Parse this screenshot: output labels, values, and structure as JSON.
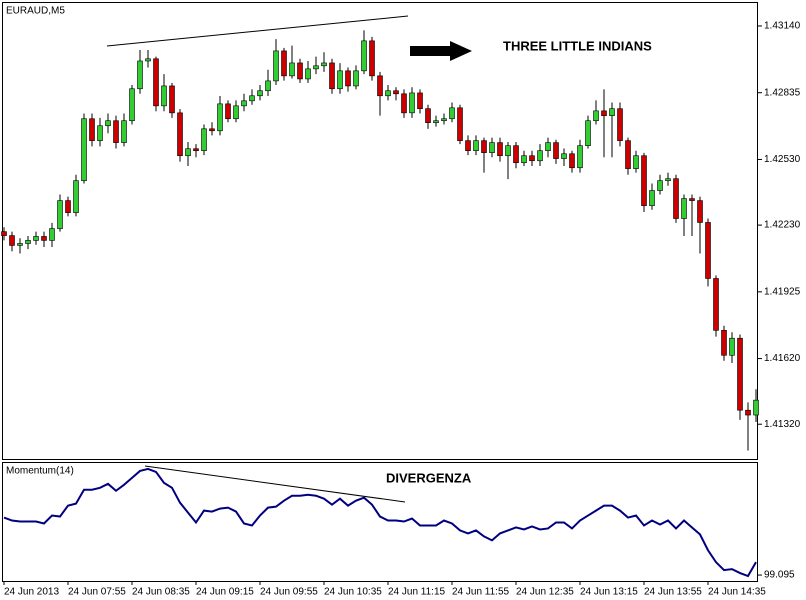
{
  "chart_data": [
    {
      "type": "candlestick",
      "title": "EURAUD,M5",
      "annotation": "THREE LITTLE INDIANS",
      "categories": [
        "24 Jun 2013",
        null,
        null,
        null,
        null,
        null,
        null,
        null,
        "24 Jun 07:55",
        null,
        null,
        null,
        null,
        null,
        null,
        null,
        "24 Jun 08:35",
        null,
        null,
        null,
        null,
        null,
        null,
        null,
        "24 Jun 09:15",
        null,
        null,
        null,
        null,
        null,
        null,
        null,
        "24 Jun 09:55",
        null,
        null,
        null,
        null,
        null,
        null,
        null,
        "24 Jun 10:35",
        null,
        null,
        null,
        null,
        null,
        null,
        null,
        "24 Jun 11:15",
        null,
        null,
        null,
        null,
        null,
        null,
        null,
        "24 Jun 11:55",
        null,
        null,
        null,
        null,
        null,
        null,
        null,
        "24 Jun 12:35",
        null,
        null,
        null,
        null,
        null,
        null,
        null,
        "24 Jun 13:15",
        null,
        null,
        null,
        null,
        null,
        null,
        null,
        "24 Jun 13:55",
        null,
        null,
        null,
        null,
        null,
        null,
        null,
        "24 Jun 14:35",
        null,
        null,
        null,
        null,
        null,
        null
      ],
      "open": [
        1.422,
        1.42182,
        1.42137,
        1.42146,
        1.4216,
        1.42178,
        1.4216,
        1.42214,
        1.42342,
        1.42287,
        1.42433,
        1.42716,
        1.42616,
        1.42684,
        1.42707,
        1.42607,
        1.42707,
        1.42853,
        1.4298,
        1.4299,
        1.42775,
        1.42866,
        1.42743,
        1.42547,
        1.42579,
        1.4257,
        1.4267,
        1.42661,
        1.42784,
        1.42716,
        1.42775,
        1.42798,
        1.42821,
        1.42844,
        1.42889,
        1.43026,
        1.42912,
        1.42971,
        1.42898,
        1.42944,
        1.42958,
        1.42971,
        1.42853,
        1.42935,
        1.42866,
        1.42935,
        1.43072,
        1.42912,
        1.42821,
        1.42844,
        1.4283,
        1.42743,
        1.42834,
        1.42762,
        1.42698,
        1.42707,
        1.42716,
        1.42766,
        1.42616,
        1.4257,
        1.42616,
        1.42561,
        1.42607,
        1.42547,
        1.42593,
        1.42515,
        1.42547,
        1.42524,
        1.4257,
        1.42607,
        1.42534,
        1.42556,
        1.42492,
        1.42593,
        1.42707,
        1.42752,
        1.4273,
        1.42762,
        1.42616,
        1.42488,
        1.42547,
        1.42319,
        1.42388,
        1.42433,
        1.42442,
        1.4226,
        1.42351,
        1.42342,
        1.42242,
        1.41986,
        1.41749,
        1.41635,
        1.41713,
        1.41384,
        1.41362
      ],
      "high": [
        1.4222,
        1.422,
        1.4217,
        1.4218,
        1.422,
        1.422,
        1.4224,
        1.4237,
        1.4236,
        1.4246,
        1.4274,
        1.4274,
        1.4272,
        1.4274,
        1.4273,
        1.4274,
        1.4287,
        1.4303,
        1.4303,
        1.43,
        1.4292,
        1.4288,
        1.4276,
        1.4261,
        1.426,
        1.4269,
        1.427,
        1.4282,
        1.428,
        1.428,
        1.4283,
        1.4285,
        1.4287,
        1.4294,
        1.4308,
        1.4304,
        1.4305,
        1.4299,
        1.4298,
        1.43,
        1.4302,
        1.4299,
        1.4297,
        1.4295,
        1.4296,
        1.4312,
        1.4309,
        1.4293,
        1.4287,
        1.4286,
        1.4285,
        1.4286,
        1.4285,
        1.4278,
        1.4273,
        1.4274,
        1.4279,
        1.4278,
        1.4264,
        1.4264,
        1.4263,
        1.4263,
        1.4263,
        1.4261,
        1.4261,
        1.4257,
        1.4257,
        1.426,
        1.4263,
        1.4262,
        1.4258,
        1.4257,
        1.4262,
        1.4273,
        1.428,
        1.4285,
        1.4279,
        1.4279,
        1.4263,
        1.4257,
        1.4256,
        1.4242,
        1.4246,
        1.4247,
        1.4246,
        1.4237,
        1.4237,
        1.4236,
        1.4226,
        1.42,
        1.4177,
        1.4174,
        1.4173,
        1.4142,
        1.4148
      ],
      "low": [
        1.4216,
        1.4211,
        1.421,
        1.4212,
        1.4214,
        1.4213,
        1.4213,
        1.422,
        1.4227,
        1.4227,
        1.4242,
        1.4259,
        1.4259,
        1.4265,
        1.4258,
        1.4259,
        1.4269,
        1.4283,
        1.4295,
        1.4275,
        1.4275,
        1.4272,
        1.4252,
        1.425,
        1.4254,
        1.4255,
        1.4264,
        1.4264,
        1.427,
        1.427,
        1.4275,
        1.4278,
        1.428,
        1.4282,
        1.4287,
        1.4289,
        1.429,
        1.4288,
        1.4288,
        1.4292,
        1.4293,
        1.4283,
        1.4283,
        1.4284,
        1.4285,
        1.4292,
        1.4289,
        1.4273,
        1.428,
        1.428,
        1.4272,
        1.4272,
        1.4274,
        1.4267,
        1.4268,
        1.4269,
        1.427,
        1.426,
        1.4255,
        1.4255,
        1.4247,
        1.4254,
        1.4252,
        1.4244,
        1.4249,
        1.425,
        1.425,
        1.425,
        1.4254,
        1.4251,
        1.425,
        1.4247,
        1.4247,
        1.4258,
        1.4269,
        1.4254,
        1.4254,
        1.4259,
        1.4246,
        1.4247,
        1.4229,
        1.423,
        1.4237,
        1.4241,
        1.4224,
        1.4218,
        1.4218,
        1.421,
        1.4195,
        1.4172,
        1.4161,
        1.416,
        1.4134,
        1.412,
        1.4133
      ],
      "close": [
        1.42182,
        1.42137,
        1.42146,
        1.4216,
        1.42178,
        1.4216,
        1.42214,
        1.42342,
        1.42287,
        1.42433,
        1.42716,
        1.42616,
        1.42684,
        1.42707,
        1.42607,
        1.42707,
        1.42853,
        1.4298,
        1.4299,
        1.42775,
        1.42866,
        1.42743,
        1.42547,
        1.42579,
        1.4257,
        1.4267,
        1.42661,
        1.42784,
        1.42716,
        1.42775,
        1.42798,
        1.42821,
        1.42844,
        1.42889,
        1.43026,
        1.42912,
        1.42971,
        1.42898,
        1.42944,
        1.42958,
        1.42971,
        1.42853,
        1.42935,
        1.42866,
        1.42935,
        1.43072,
        1.42912,
        1.42821,
        1.42844,
        1.4283,
        1.42743,
        1.42834,
        1.42762,
        1.42698,
        1.42707,
        1.42716,
        1.42766,
        1.42616,
        1.4257,
        1.42616,
        1.42561,
        1.42607,
        1.42547,
        1.42593,
        1.42515,
        1.42547,
        1.42524,
        1.4257,
        1.42607,
        1.42534,
        1.42556,
        1.42492,
        1.42593,
        1.42707,
        1.42752,
        1.4273,
        1.42762,
        1.42616,
        1.42488,
        1.42547,
        1.42319,
        1.42388,
        1.42433,
        1.42442,
        1.4226,
        1.42351,
        1.42342,
        1.42242,
        1.41986,
        1.41749,
        1.41635,
        1.41713,
        1.41384,
        1.41362,
        1.4143
      ],
      "up_color": "#32cd32",
      "down_color": "#cc0000",
      "ylim": [
        1.41161,
        1.43245
      ],
      "yticks": [
        {
          "value": 1.4314,
          "label": "1.43140"
        },
        {
          "value": 1.42835,
          "label": "1.42835"
        },
        {
          "value": 1.4253,
          "label": "1.42530"
        },
        {
          "value": 1.4223,
          "label": "1.42230"
        },
        {
          "value": 1.41925,
          "label": "1.41925"
        },
        {
          "value": 1.4162,
          "label": "1.41620"
        },
        {
          "value": 1.4132,
          "label": "1.41320"
        }
      ]
    },
    {
      "type": "line",
      "title": "Momentum(14)",
      "annotation": "DIVERGENZA",
      "color": "#000080",
      "values": [
        99.791,
        99.755,
        99.743,
        99.743,
        99.743,
        99.719,
        99.815,
        99.803,
        99.935,
        99.959,
        100.127,
        100.127,
        100.151,
        100.199,
        100.115,
        100.187,
        100.271,
        100.355,
        100.379,
        100.343,
        100.211,
        100.151,
        99.971,
        99.851,
        99.731,
        99.875,
        99.863,
        99.899,
        99.911,
        99.863,
        99.719,
        99.695,
        99.815,
        99.911,
        99.923,
        99.995,
        100.055,
        100.055,
        100.067,
        100.055,
        100.019,
        99.947,
        100.019,
        99.935,
        99.995,
        100.031,
        99.947,
        99.803,
        99.755,
        99.755,
        99.743,
        99.779,
        99.695,
        99.695,
        99.695,
        99.755,
        99.719,
        99.635,
        99.599,
        99.635,
        99.563,
        99.515,
        99.599,
        99.635,
        99.671,
        99.647,
        99.683,
        99.647,
        99.659,
        99.731,
        99.731,
        99.659,
        99.755,
        99.815,
        99.875,
        99.935,
        99.935,
        99.875,
        99.791,
        99.815,
        99.695,
        99.755,
        99.707,
        99.755,
        99.659,
        99.755,
        99.671,
        99.587,
        99.395,
        99.251,
        99.155,
        99.167,
        99.119,
        99.083,
        99.251
      ],
      "ylim": [
        99.023,
        100.451
      ],
      "yticks": [
        99.095
      ]
    }
  ]
}
